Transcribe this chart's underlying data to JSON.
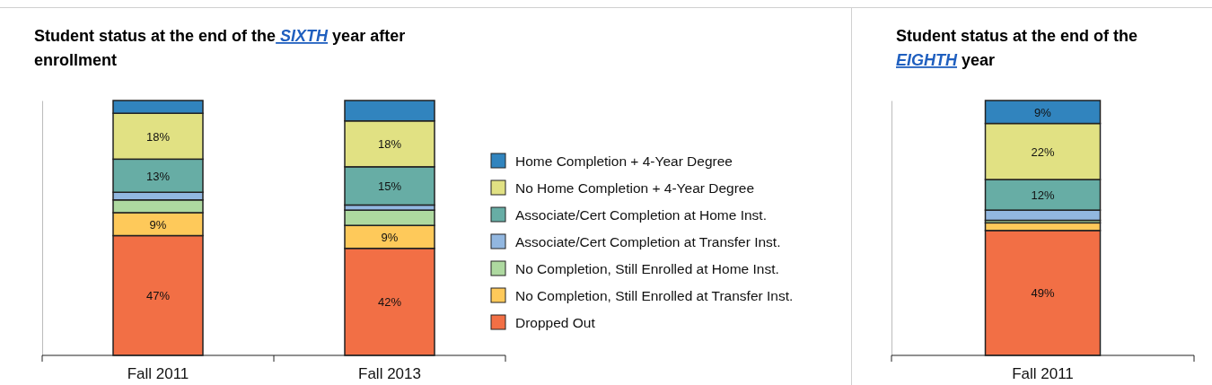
{
  "chart_data": [
    {
      "type": "bar",
      "title": "Student status at the end of the SIXTH year after enrollment",
      "categories": [
        "Fall 2011",
        "Fall 2013"
      ],
      "stacked": true,
      "ylim": [
        0,
        100
      ],
      "tick_labels": "x",
      "legend": "right",
      "series": [
        {
          "name": "Dropped Out",
          "color": "#f26f45",
          "values": [
            47,
            42
          ],
          "value_labels": [
            "47%",
            "42%"
          ]
        },
        {
          "name": "No Completion, Still Enrolled at Transfer Inst.",
          "color": "#fec95a",
          "values": [
            9,
            9
          ],
          "value_labels": [
            "9%",
            "9%"
          ]
        },
        {
          "name": "No Completion, Still Enrolled at Home Inst.",
          "color": "#aed9a0",
          "values": [
            5,
            6
          ],
          "value_labels": [
            null,
            null
          ]
        },
        {
          "name": "Associate/Cert Completion at Transfer Inst.",
          "color": "#92b7e0",
          "values": [
            3,
            2
          ],
          "value_labels": [
            null,
            null
          ]
        },
        {
          "name": "Associate/Cert Completion at Home Inst.",
          "color": "#67ada5",
          "values": [
            13,
            15
          ],
          "value_labels": [
            "13%",
            "15%"
          ]
        },
        {
          "name": "No Home Completion + 4-Year Degree",
          "color": "#e1e183",
          "values": [
            18,
            18
          ],
          "value_labels": [
            "18%",
            "18%"
          ]
        },
        {
          "name": "Home Completion + 4-Year Degree",
          "color": "#3184be",
          "values": [
            5,
            8
          ],
          "value_labels": [
            null,
            null
          ]
        }
      ]
    },
    {
      "type": "bar",
      "title": "Student status at the end of the EIGHTH year",
      "categories": [
        "Fall 2011"
      ],
      "stacked": true,
      "ylim": [
        0,
        100
      ],
      "tick_labels": "x",
      "series": [
        {
          "color": "#f26f45",
          "values": [
            49
          ],
          "value_labels": [
            "49%"
          ]
        },
        {
          "color": "#fec95a",
          "values": [
            3
          ],
          "value_labels": [
            null
          ]
        },
        {
          "color": "#aed9a0",
          "values": [
            1
          ],
          "value_labels": [
            null
          ]
        },
        {
          "color": "#92b7e0",
          "values": [
            4
          ],
          "value_labels": [
            null
          ]
        },
        {
          "color": "#67ada5",
          "values": [
            12
          ],
          "value_labels": [
            "12%"
          ]
        },
        {
          "color": "#e1e183",
          "values": [
            22
          ],
          "value_labels": [
            "22%"
          ]
        },
        {
          "color": "#3184be",
          "values": [
            9
          ],
          "value_labels": [
            "9%"
          ]
        }
      ]
    }
  ]
}
